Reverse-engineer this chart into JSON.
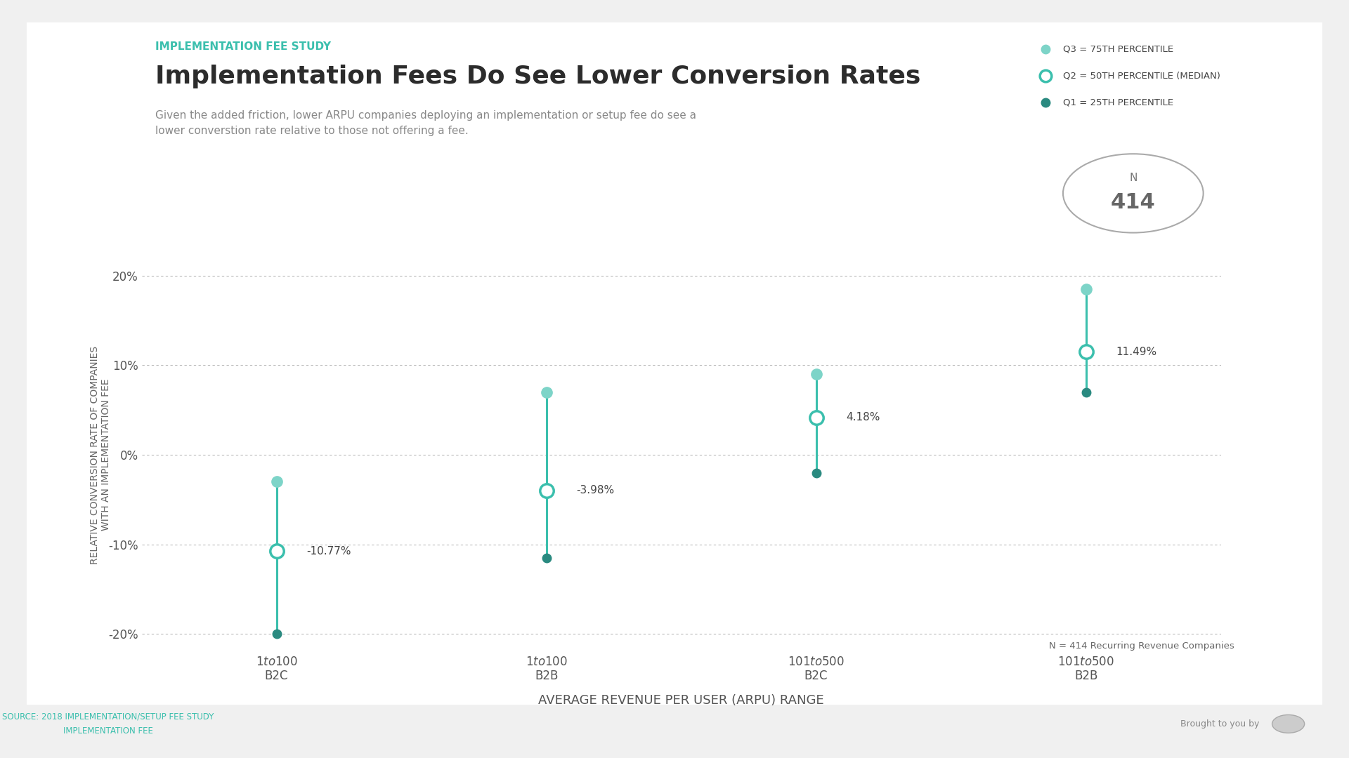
{
  "title_label": "IMPLEMENTATION FEE STUDY",
  "title": "Implementation Fees Do See Lower Conversion Rates",
  "subtitle": "Given the added friction, lower ARPU companies deploying an implementation or setup fee do see a\nlower converstion rate relative to those not offering a fee.",
  "categories": [
    "$1 to $100\nB2C",
    "$1 to $100\nB2B",
    "$101 to $500\nB2C",
    "$101 to $500\nB2B"
  ],
  "q3_values": [
    -3.0,
    7.0,
    9.0,
    18.5
  ],
  "q2_values": [
    -10.77,
    -3.98,
    4.18,
    11.49
  ],
  "q1_values": [
    -20.0,
    -11.5,
    -2.0,
    7.0
  ],
  "q2_labels": [
    "-10.77%",
    "-3.98%",
    "4.18%",
    "11.49%"
  ],
  "ylim": [
    -22,
    22
  ],
  "yticks": [
    -20,
    -10,
    0,
    10,
    20
  ],
  "ytick_labels": [
    "-20%",
    "-10%",
    "0%",
    "10%",
    "20%"
  ],
  "xlabel": "AVERAGE REVENUE PER USER (ARPU) RANGE",
  "ylabel": "RELATIVE CONVERSION RATE OF COMPANIES\nWITH AN IMPLEMENTATION FEE",
  "legend_q3": "Q3 = 75TH PERCENTILE",
  "legend_q2": "Q2 = 50TH PERCENTILE (MEDIAN)",
  "legend_q1": "Q1 = 25TH PERCENTILE",
  "n_note": "N = 414 Recurring Revenue Companies",
  "color_line": "#3bbfad",
  "color_q3": "#7dd4c8",
  "color_q2_ring": "#3bbfad",
  "color_q1": "#2a8a80",
  "color_title_label": "#3bbfad",
  "color_title": "#2c2c2c",
  "color_subtitle": "#888888",
  "color_xlabel": "#555555",
  "color_ylabel": "#666666",
  "bg_color": "#f0f0f0",
  "panel_color": "#ffffff",
  "footer_text": "SOURCE: 2018 IMPLEMENTATION/SETUP FEE STUDY\nIMPLEMENTATION FEE",
  "footer_color": "#3bbfad"
}
